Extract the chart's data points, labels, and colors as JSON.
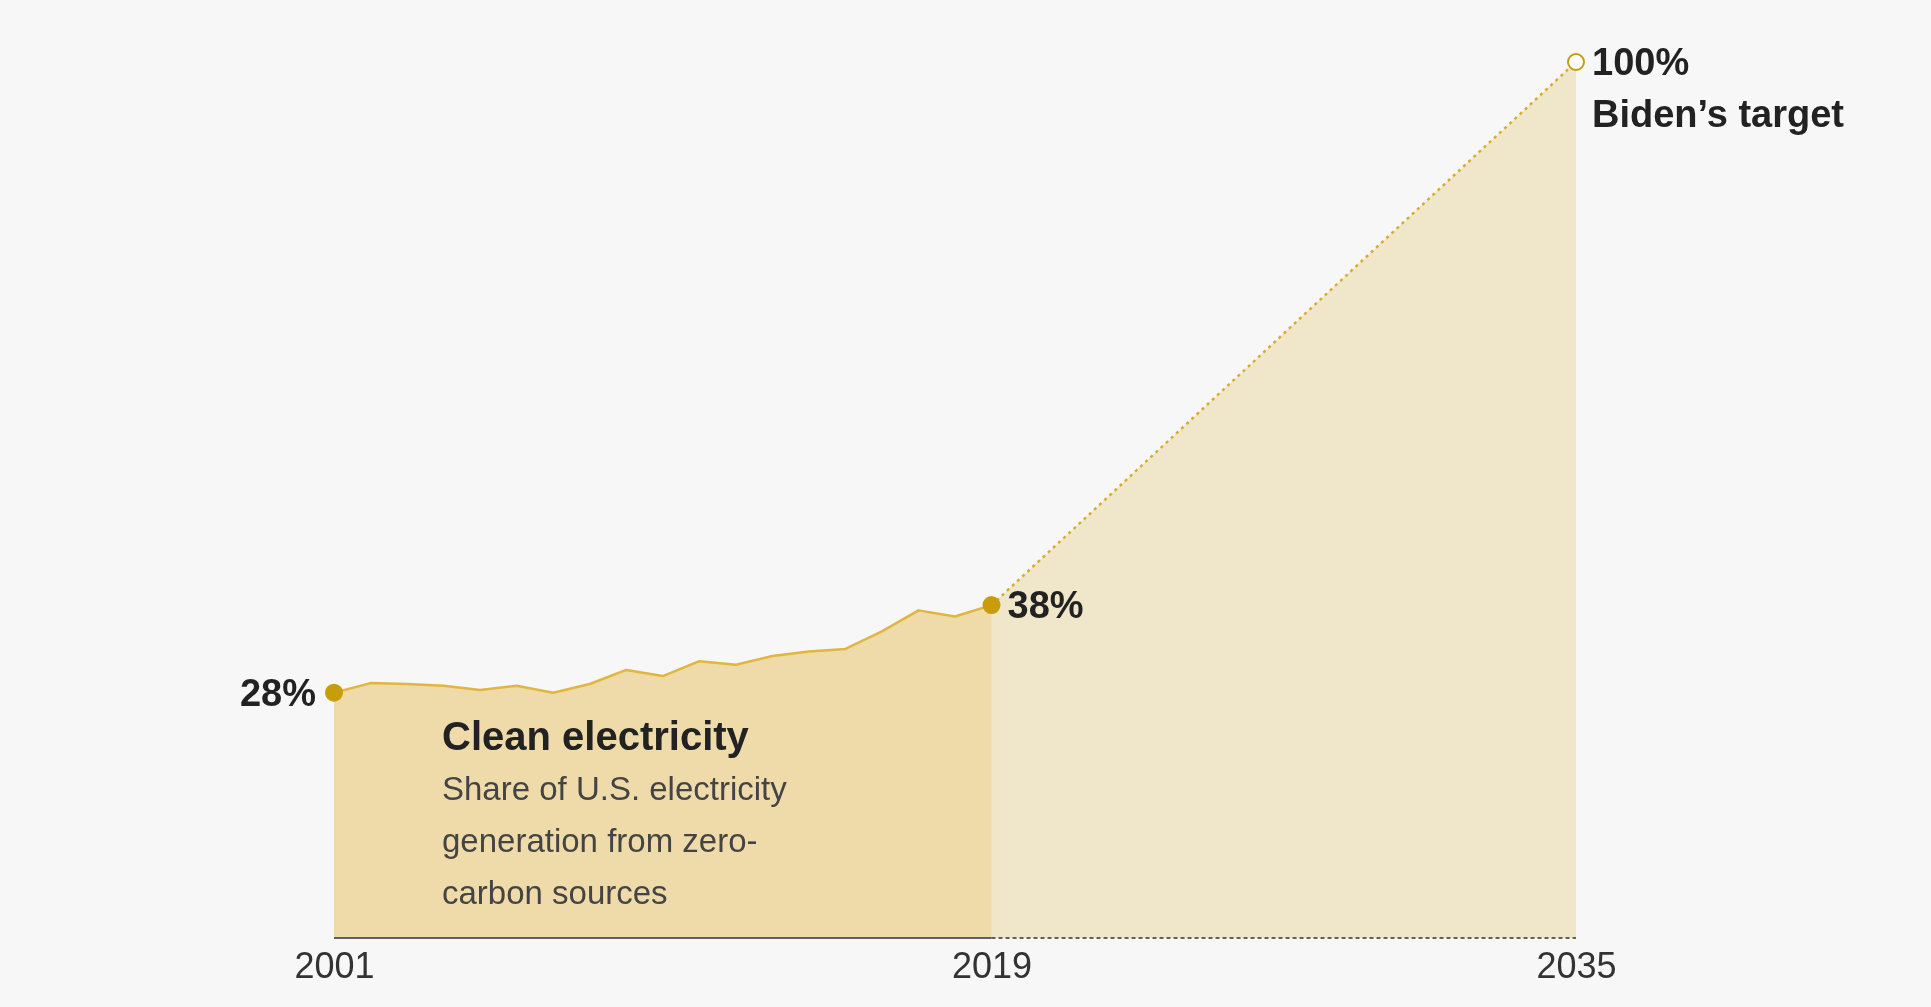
{
  "chart_data": {
    "type": "area",
    "title": "Clean electricity",
    "subtitle": "Share of U.S. electricity generation from zero-carbon sources",
    "xlim": [
      2001,
      2035
    ],
    "xticks": [
      2001,
      2019,
      2035
    ],
    "tick_labels": "x",
    "series": [
      {
        "color": "#e2b53e",
        "line_style": "solid",
        "x": [
          2001,
          2002,
          2003,
          2004,
          2005,
          2006,
          2007,
          2008,
          2009,
          2010,
          2011,
          2012,
          2013,
          2014,
          2015,
          2016,
          2017,
          2018,
          2019
        ],
        "values": [
          28,
          29.1,
          29,
          28.8,
          28.3,
          28.8,
          28,
          29,
          30.6,
          29.9,
          31.6,
          31.2,
          32.2,
          32.7,
          33,
          35,
          37.4,
          36.7,
          38
        ],
        "value_labels": [
          "28%",
          null,
          null,
          null,
          null,
          null,
          null,
          null,
          null,
          null,
          null,
          null,
          null,
          null,
          null,
          null,
          null,
          null,
          "38%"
        ]
      },
      {
        "color": "#d9ad2c",
        "line_style": "dotted",
        "x": [
          2019,
          2035
        ],
        "values": [
          38,
          100
        ],
        "value_labels": [
          null,
          "100%"
        ]
      }
    ],
    "annotations": [
      {
        "text": "Biden’s target",
        "x": 2035,
        "y": 100
      }
    ]
  }
}
